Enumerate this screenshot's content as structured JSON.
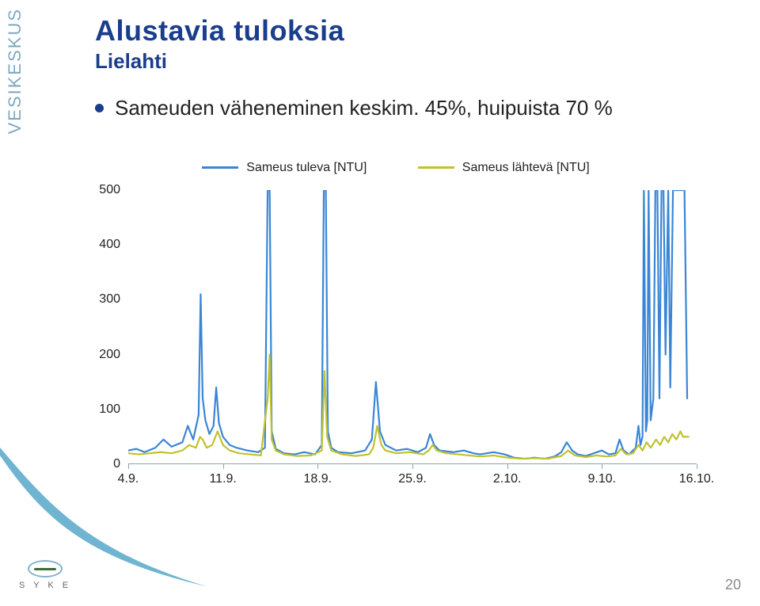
{
  "brand_vertical": "VESIKESKUS",
  "logo_text": "S Y K E",
  "page_number": "20",
  "heading": {
    "title": "Alustavia tuloksia",
    "subtitle": "Lielahti"
  },
  "bullet": "Sameuden väheneminen keskim. 45%, huipuista 70 %",
  "chart": {
    "type": "line",
    "legend": [
      {
        "label": "Sameus tuleva [NTU]",
        "color": "#3a86d5"
      },
      {
        "label": "Sameus lähtevä [NTU]",
        "color": "#c0c22e"
      }
    ],
    "background_color": "#ffffff",
    "grid_color": "#ffffff",
    "axis_color": "#8aa3bb",
    "line_width": 2.2,
    "ylim": [
      0,
      500
    ],
    "ytick_step": 100,
    "yticks": [
      0,
      100,
      200,
      300,
      400,
      500
    ],
    "x_domain_days": [
      0,
      42
    ],
    "xtick_positions_days": [
      0,
      7,
      14,
      21,
      28,
      35,
      42
    ],
    "xtick_labels": [
      "4.9.",
      "11.9.",
      "18.9.",
      "25.9.",
      "2.10.",
      "9.10.",
      "16.10."
    ],
    "series": {
      "tuleva": [
        [
          0.0,
          25
        ],
        [
          0.6,
          28
        ],
        [
          1.2,
          22
        ],
        [
          2.0,
          30
        ],
        [
          2.6,
          45
        ],
        [
          3.2,
          32
        ],
        [
          4.0,
          40
        ],
        [
          4.4,
          70
        ],
        [
          4.8,
          45
        ],
        [
          5.2,
          90
        ],
        [
          5.35,
          310
        ],
        [
          5.5,
          120
        ],
        [
          5.7,
          80
        ],
        [
          6.0,
          55
        ],
        [
          6.3,
          70
        ],
        [
          6.5,
          140
        ],
        [
          6.7,
          75
        ],
        [
          7.0,
          50
        ],
        [
          7.5,
          35
        ],
        [
          8.0,
          30
        ],
        [
          8.8,
          25
        ],
        [
          9.6,
          22
        ],
        [
          10.1,
          30
        ],
        [
          10.3,
          500
        ],
        [
          10.45,
          500
        ],
        [
          10.6,
          60
        ],
        [
          10.9,
          28
        ],
        [
          11.5,
          20
        ],
        [
          12.3,
          18
        ],
        [
          13.0,
          22
        ],
        [
          13.8,
          18
        ],
        [
          14.3,
          35
        ],
        [
          14.45,
          500
        ],
        [
          14.6,
          500
        ],
        [
          14.75,
          60
        ],
        [
          15.0,
          30
        ],
        [
          15.5,
          22
        ],
        [
          16.5,
          20
        ],
        [
          17.5,
          25
        ],
        [
          18.0,
          45
        ],
        [
          18.3,
          150
        ],
        [
          18.6,
          60
        ],
        [
          19.0,
          35
        ],
        [
          19.8,
          25
        ],
        [
          20.6,
          28
        ],
        [
          21.4,
          22
        ],
        [
          22.0,
          30
        ],
        [
          22.3,
          55
        ],
        [
          22.6,
          35
        ],
        [
          23.0,
          25
        ],
        [
          24.0,
          22
        ],
        [
          24.8,
          25
        ],
        [
          25.5,
          20
        ],
        [
          26.0,
          18
        ],
        [
          27.0,
          22
        ],
        [
          27.8,
          18
        ],
        [
          28.5,
          12
        ],
        [
          29.3,
          10
        ],
        [
          30.0,
          12
        ],
        [
          30.8,
          10
        ],
        [
          31.5,
          14
        ],
        [
          32.0,
          22
        ],
        [
          32.4,
          40
        ],
        [
          32.8,
          25
        ],
        [
          33.2,
          18
        ],
        [
          33.8,
          15
        ],
        [
          34.4,
          20
        ],
        [
          35.0,
          25
        ],
        [
          35.5,
          18
        ],
        [
          36.0,
          20
        ],
        [
          36.3,
          45
        ],
        [
          36.6,
          25
        ],
        [
          37.0,
          18
        ],
        [
          37.5,
          30
        ],
        [
          37.7,
          70
        ],
        [
          37.85,
          35
        ],
        [
          38.0,
          50
        ],
        [
          38.1,
          500
        ],
        [
          38.25,
          60
        ],
        [
          38.35,
          80
        ],
        [
          38.45,
          500
        ],
        [
          38.6,
          80
        ],
        [
          38.8,
          120
        ],
        [
          38.95,
          500
        ],
        [
          39.1,
          500
        ],
        [
          39.25,
          120
        ],
        [
          39.4,
          500
        ],
        [
          39.55,
          500
        ],
        [
          39.7,
          200
        ],
        [
          39.9,
          500
        ],
        [
          40.05,
          140
        ],
        [
          40.25,
          500
        ],
        [
          40.4,
          500
        ],
        [
          40.55,
          500
        ],
        [
          40.7,
          500
        ],
        [
          40.9,
          500
        ],
        [
          41.1,
          500
        ],
        [
          41.3,
          120
        ]
      ],
      "lahteva": [
        [
          0.0,
          20
        ],
        [
          0.8,
          18
        ],
        [
          1.6,
          20
        ],
        [
          2.4,
          22
        ],
        [
          3.2,
          20
        ],
        [
          4.0,
          25
        ],
        [
          4.5,
          35
        ],
        [
          5.0,
          30
        ],
        [
          5.3,
          50
        ],
        [
          5.5,
          45
        ],
        [
          5.8,
          30
        ],
        [
          6.2,
          35
        ],
        [
          6.6,
          60
        ],
        [
          7.0,
          35
        ],
        [
          7.5,
          25
        ],
        [
          8.2,
          20
        ],
        [
          9.0,
          18
        ],
        [
          9.8,
          16
        ],
        [
          10.3,
          120
        ],
        [
          10.45,
          200
        ],
        [
          10.6,
          45
        ],
        [
          10.9,
          25
        ],
        [
          11.5,
          18
        ],
        [
          12.5,
          15
        ],
        [
          13.5,
          16
        ],
        [
          14.3,
          25
        ],
        [
          14.5,
          170
        ],
        [
          14.7,
          50
        ],
        [
          15.0,
          25
        ],
        [
          15.8,
          18
        ],
        [
          16.8,
          15
        ],
        [
          17.8,
          18
        ],
        [
          18.1,
          30
        ],
        [
          18.4,
          70
        ],
        [
          18.7,
          35
        ],
        [
          19.0,
          25
        ],
        [
          19.8,
          20
        ],
        [
          20.8,
          22
        ],
        [
          21.8,
          18
        ],
        [
          22.2,
          25
        ],
        [
          22.5,
          35
        ],
        [
          22.8,
          25
        ],
        [
          23.5,
          20
        ],
        [
          24.4,
          18
        ],
        [
          25.2,
          16
        ],
        [
          26.0,
          14
        ],
        [
          27.0,
          16
        ],
        [
          28.0,
          12
        ],
        [
          29.0,
          10
        ],
        [
          30.0,
          11
        ],
        [
          31.0,
          10
        ],
        [
          32.0,
          15
        ],
        [
          32.5,
          25
        ],
        [
          33.0,
          16
        ],
        [
          33.8,
          13
        ],
        [
          34.6,
          16
        ],
        [
          35.4,
          14
        ],
        [
          36.0,
          16
        ],
        [
          36.4,
          28
        ],
        [
          36.8,
          18
        ],
        [
          37.3,
          20
        ],
        [
          37.7,
          35
        ],
        [
          38.0,
          25
        ],
        [
          38.3,
          40
        ],
        [
          38.6,
          30
        ],
        [
          39.0,
          45
        ],
        [
          39.3,
          35
        ],
        [
          39.6,
          50
        ],
        [
          39.9,
          40
        ],
        [
          40.2,
          55
        ],
        [
          40.5,
          45
        ],
        [
          40.8,
          60
        ],
        [
          41.0,
          50
        ],
        [
          41.2,
          50
        ],
        [
          41.4,
          50
        ]
      ]
    }
  }
}
